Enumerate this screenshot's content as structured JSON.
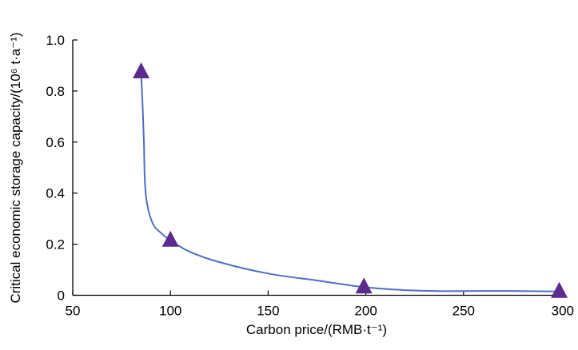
{
  "chart_data": {
    "type": "scatter",
    "title": "",
    "xlabel": "Carbon price/(RMB·t⁻¹)",
    "ylabel": "Critical economic storage capacity/(10⁶ t·a⁻¹)",
    "xlim": [
      50,
      300
    ],
    "ylim": [
      0,
      1.0
    ],
    "x_ticks": [
      50,
      100,
      150,
      200,
      250,
      300
    ],
    "x_tick_labels": [
      "50",
      "100",
      "150",
      "200",
      "250",
      "300"
    ],
    "y_ticks": [
      0,
      0.2,
      0.4,
      0.6,
      0.8,
      1.0
    ],
    "y_tick_labels": [
      "0",
      "0.2",
      "0.4",
      "0.6",
      "0.8",
      "1.0"
    ],
    "grid": false,
    "legend": "none",
    "marker": "triangle",
    "marker_color": "#5b2c8e",
    "line_color": "#4f6fc4",
    "points": [
      {
        "x": 85,
        "y": 0.875
      },
      {
        "x": 100,
        "y": 0.215
      },
      {
        "x": 199,
        "y": 0.032
      },
      {
        "x": 299,
        "y": 0.015
      }
    ],
    "fitted_curve": [
      {
        "x": 85,
        "y": 0.875
      },
      {
        "x": 85.7,
        "y": 0.75
      },
      {
        "x": 86.4,
        "y": 0.6
      },
      {
        "x": 86.9,
        "y": 0.45
      },
      {
        "x": 88,
        "y": 0.36
      },
      {
        "x": 91,
        "y": 0.28
      },
      {
        "x": 95,
        "y": 0.245
      },
      {
        "x": 100,
        "y": 0.215
      },
      {
        "x": 110,
        "y": 0.17
      },
      {
        "x": 125,
        "y": 0.13
      },
      {
        "x": 150,
        "y": 0.085
      },
      {
        "x": 175,
        "y": 0.058
      },
      {
        "x": 199,
        "y": 0.032
      },
      {
        "x": 220,
        "y": 0.02
      },
      {
        "x": 240,
        "y": 0.016
      },
      {
        "x": 270,
        "y": 0.017
      },
      {
        "x": 299,
        "y": 0.015
      }
    ]
  }
}
